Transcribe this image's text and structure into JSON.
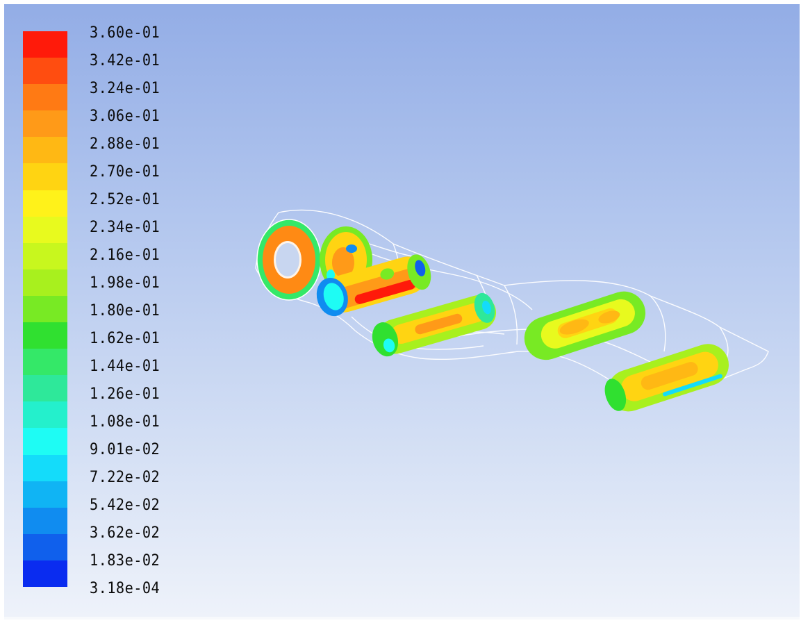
{
  "colormap": {
    "labels": [
      "3.60e-01",
      "3.42e-01",
      "3.24e-01",
      "3.06e-01",
      "2.88e-01",
      "2.70e-01",
      "2.52e-01",
      "2.34e-01",
      "2.16e-01",
      "1.98e-01",
      "1.80e-01",
      "1.62e-01",
      "1.44e-01",
      "1.26e-01",
      "1.08e-01",
      "9.01e-02",
      "7.22e-02",
      "5.42e-02",
      "3.62e-02",
      "1.83e-02",
      "3.18e-04"
    ],
    "colors": [
      "#ff1a0a",
      "#ff4d10",
      "#ff7a14",
      "#ff9a18",
      "#ffb814",
      "#ffd412",
      "#fff21a",
      "#e8fa1e",
      "#c8f71e",
      "#a8f01e",
      "#78ea24",
      "#30e030",
      "#34e868",
      "#2ee89a",
      "#24f0cc",
      "#1efcf4",
      "#14dcfa",
      "#10b4f4",
      "#108cf0",
      "#1060ec",
      "#0a2cf0"
    ]
  },
  "scene": {
    "wireframe_color": "#ffffff",
    "background_top": "#93ade6",
    "background_bottom": "#eef2fa"
  }
}
